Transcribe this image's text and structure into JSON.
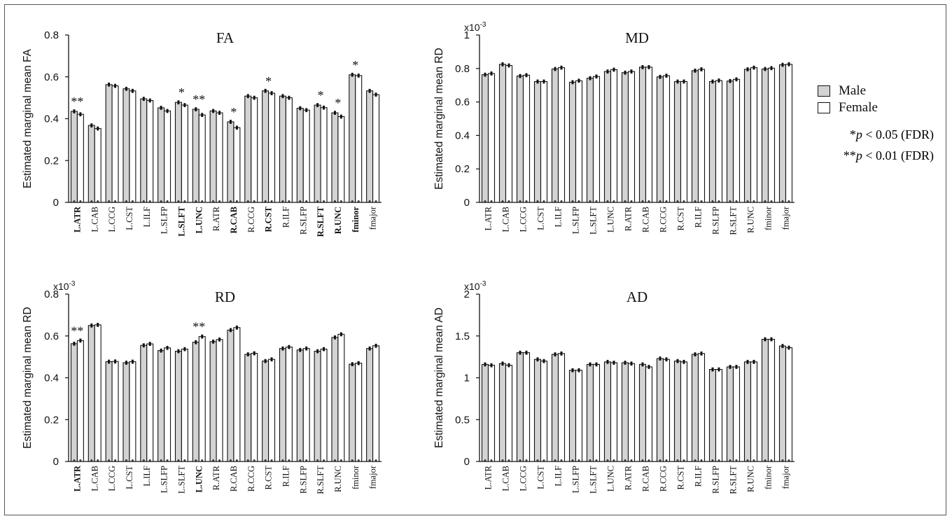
{
  "legend": {
    "male_label": "Male",
    "female_label": "Female",
    "male_color": "#d3d3d3",
    "female_color": "#ffffff",
    "sig1_stars": "*",
    "sig1_p": "p",
    "sig1_rest": " < 0.05 (FDR)",
    "sig2_stars": "**",
    "sig2_p": "p",
    "sig2_rest": " < 0.01 (FDR)"
  },
  "chart_data": [
    {
      "type": "bar",
      "title": "FA",
      "ylabel": "Estimated marginal mean FA",
      "multiplier": "",
      "ylim": [
        0,
        0.8
      ],
      "yticks": [
        "0",
        "0.2",
        "0.4",
        "0.6",
        "0.8"
      ],
      "ytick_values": [
        0,
        0.2,
        0.4,
        0.6,
        0.8
      ],
      "categories": [
        "L.ATR",
        "L.CAB",
        "L.CCG",
        "L.CST",
        "L.ILF",
        "L.SLFP",
        "L.SLFT",
        "L.UNC",
        "R.ATR",
        "R.CAB",
        "R.CCG",
        "R.CST",
        "R.ILF",
        "R.SLFP",
        "R.SLFT",
        "R.UNC",
        "fminor",
        "fmajor"
      ],
      "bold_categories": [
        "L.ATR",
        "L.SLFT",
        "L.UNC",
        "R.CAB",
        "R.CST",
        "R.SLFT",
        "R.UNC",
        "fminor"
      ],
      "series": [
        {
          "name": "Male",
          "values": [
            0.435,
            0.368,
            0.563,
            0.543,
            0.495,
            0.452,
            0.478,
            0.445,
            0.437,
            0.385,
            0.508,
            0.533,
            0.508,
            0.45,
            0.465,
            0.428,
            0.61,
            0.533
          ]
        },
        {
          "name": "Female",
          "values": [
            0.421,
            0.353,
            0.557,
            0.533,
            0.487,
            0.437,
            0.465,
            0.418,
            0.428,
            0.357,
            0.5,
            0.522,
            0.5,
            0.441,
            0.453,
            0.41,
            0.606,
            0.515
          ]
        }
      ],
      "significance": [
        "**",
        "",
        "",
        "",
        "",
        "",
        "*",
        "**",
        "",
        "*",
        "",
        "*",
        "",
        "",
        "*",
        "*",
        "*",
        ""
      ]
    },
    {
      "type": "bar",
      "title": "MD",
      "ylabel": "Estimated marginal mean RD",
      "multiplier": "x10-3",
      "ylim": [
        0,
        1
      ],
      "yticks": [
        "0",
        "0.2",
        "0.4",
        "0.6",
        "0.8",
        "1"
      ],
      "ytick_values": [
        0,
        0.2,
        0.4,
        0.6,
        0.8,
        1
      ],
      "categories": [
        "L.ATR",
        "L.CAB",
        "L.CCG",
        "L.CST",
        "L.ILF",
        "L.SLFP",
        "L.SLFT",
        "L.UNC",
        "R.ATR",
        "R.CAB",
        "R.CCG",
        "R.CST",
        "R.ILF",
        "R.SLFP",
        "R.SLFT",
        "R.UNC",
        "fminor",
        "fmajor"
      ],
      "bold_categories": [],
      "series": [
        {
          "name": "Male",
          "values": [
            0.763,
            0.825,
            0.755,
            0.722,
            0.797,
            0.718,
            0.742,
            0.782,
            0.775,
            0.808,
            0.75,
            0.722,
            0.787,
            0.722,
            0.725,
            0.795,
            0.797,
            0.822
          ]
        },
        {
          "name": "Female",
          "values": [
            0.77,
            0.818,
            0.76,
            0.722,
            0.805,
            0.727,
            0.752,
            0.793,
            0.782,
            0.808,
            0.757,
            0.722,
            0.795,
            0.728,
            0.735,
            0.805,
            0.802,
            0.825
          ]
        }
      ],
      "significance": [
        "",
        "",
        "",
        "",
        "",
        "",
        "",
        "",
        "",
        "",
        "",
        "",
        "",
        "",
        "",
        "",
        "",
        ""
      ]
    },
    {
      "type": "bar",
      "title": "RD",
      "ylabel": "Estimated marginal mean RD",
      "multiplier": "x10-3",
      "ylim": [
        0,
        0.8
      ],
      "yticks": [
        "0",
        "0.2",
        "0.4",
        "0.6",
        "0.8"
      ],
      "ytick_values": [
        0,
        0.2,
        0.4,
        0.6,
        0.8
      ],
      "categories": [
        "L.ATR",
        "L.CAB",
        "L.CCG",
        "L.CST",
        "L.ILF",
        "L.SLFP",
        "L.SLFT",
        "L.UNC",
        "R.ATR",
        "R.CAB",
        "R.CCG",
        "R.CST",
        "R.ILF",
        "R.SLFP",
        "R.SLFT",
        "R.UNC",
        "fminor",
        "fmajor"
      ],
      "bold_categories": [
        "L.ATR",
        "L.UNC"
      ],
      "series": [
        {
          "name": "Male",
          "values": [
            0.563,
            0.65,
            0.477,
            0.472,
            0.555,
            0.53,
            0.527,
            0.57,
            0.573,
            0.628,
            0.512,
            0.48,
            0.54,
            0.533,
            0.527,
            0.593,
            0.465,
            0.54
          ]
        },
        {
          "name": "Female",
          "values": [
            0.578,
            0.653,
            0.478,
            0.477,
            0.562,
            0.543,
            0.537,
            0.597,
            0.583,
            0.64,
            0.517,
            0.488,
            0.547,
            0.54,
            0.537,
            0.608,
            0.47,
            0.553
          ]
        }
      ],
      "significance": [
        "**",
        "",
        "",
        "",
        "",
        "",
        "",
        "**",
        "",
        "",
        "",
        "",
        "",
        "",
        "",
        "",
        "",
        ""
      ]
    },
    {
      "type": "bar",
      "title": "AD",
      "ylabel": "Estimated marginal mean AD",
      "multiplier": "x10-3",
      "ylim": [
        0,
        2
      ],
      "yticks": [
        "0",
        "0.5",
        "1",
        "1.5",
        "2"
      ],
      "ytick_values": [
        0,
        0.5,
        1,
        1.5,
        2
      ],
      "categories": [
        "L.ATR",
        "L.CAB",
        "L.CCG",
        "L.CST",
        "L.ILF",
        "L.SLFP",
        "L.SLFT",
        "L.UNC",
        "R.ATR",
        "R.CAB",
        "R.CCG",
        "R.CST",
        "R.ILF",
        "R.SLFP",
        "R.SLFT",
        "R.UNC",
        "fminor",
        "fmajor"
      ],
      "bold_categories": [],
      "series": [
        {
          "name": "Male",
          "values": [
            1.16,
            1.17,
            1.3,
            1.22,
            1.28,
            1.09,
            1.16,
            1.19,
            1.18,
            1.16,
            1.23,
            1.2,
            1.28,
            1.1,
            1.13,
            1.19,
            1.46,
            1.38
          ]
        },
        {
          "name": "Female",
          "values": [
            1.15,
            1.15,
            1.3,
            1.2,
            1.29,
            1.09,
            1.16,
            1.18,
            1.17,
            1.13,
            1.22,
            1.19,
            1.29,
            1.1,
            1.13,
            1.19,
            1.46,
            1.36
          ]
        }
      ],
      "significance": [
        "",
        "",
        "",
        "",
        "",
        "",
        "",
        "",
        "",
        "",
        "",
        "",
        "",
        "",
        "",
        "",
        "",
        ""
      ]
    }
  ]
}
